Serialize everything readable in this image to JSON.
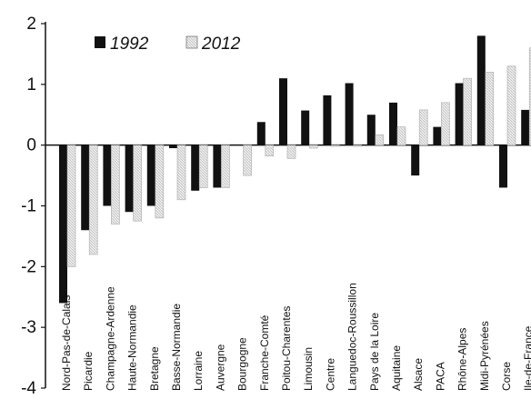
{
  "chart_data": {
    "type": "bar",
    "categories": [
      "Nord-Pas-de-Calais",
      "Picardie",
      "Champagne-Ardenne",
      "Haute-Normandie",
      "Bretagne",
      "Basse-Normandie",
      "Lorraine",
      "Auvergne",
      "Bourgogne",
      "Franche-Comté",
      "Poitou-Charentes",
      "Limousin",
      "Centre",
      "Languedoc-Roussillon",
      "Pays de la Loire",
      "Aquitaine",
      "Alsace",
      "PACA",
      "Rhône-Alpes",
      "Midi-Pyrénées",
      "Corse",
      "Ile-de-France"
    ],
    "series": [
      {
        "name": "1992",
        "color": "#111111",
        "values": [
          -2.6,
          -1.4,
          -1.0,
          -1.1,
          -1.0,
          -0.05,
          -0.75,
          -0.7,
          0.0,
          0.38,
          1.1,
          0.57,
          0.82,
          1.02,
          0.5,
          0.7,
          -0.5,
          0.3,
          1.02,
          1.8,
          -0.7,
          0.58
        ]
      },
      {
        "name": "2012",
        "color": "#e0e0e0",
        "values": [
          -2.0,
          -1.8,
          -1.3,
          -1.25,
          -1.2,
          -0.9,
          -0.7,
          -0.7,
          -0.5,
          -0.18,
          -0.22,
          -0.05,
          -0.02,
          -0.02,
          0.17,
          0.3,
          0.58,
          0.7,
          1.1,
          1.2,
          1.3,
          1.6
        ]
      }
    ],
    "ylim": [
      -4,
      2
    ],
    "yticks": [
      "2",
      "1",
      "0",
      "-1",
      "-2",
      "-3",
      "-4"
    ],
    "legend": {
      "position": "top-left",
      "labels": [
        "1992",
        "2012"
      ]
    },
    "grid": false
  }
}
